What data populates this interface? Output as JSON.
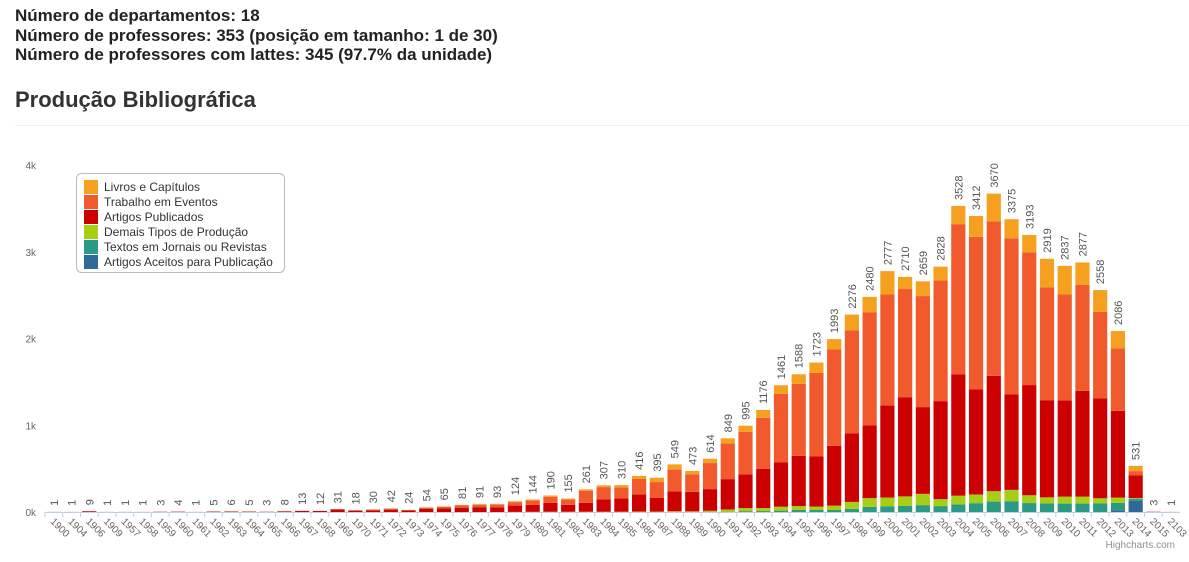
{
  "header": {
    "lines": [
      "Número de departamentos: 18",
      "Número de professores: 353 (posição em tamanho: 1 de 30)",
      "Número de professores com lattes: 345 (97.7% da unidade)"
    ]
  },
  "section_title": "Produção Bibliográfica",
  "chart_data": {
    "type": "stacked-bar",
    "credit": "Highcharts.com",
    "categories": [
      "1900",
      "1904",
      "1906",
      "1909",
      "1957",
      "1958",
      "1959",
      "1960",
      "1961",
      "1962",
      "1963",
      "1964",
      "1965",
      "1966",
      "1967",
      "1968",
      "1969",
      "1970",
      "1971",
      "1972",
      "1973",
      "1974",
      "1975",
      "1976",
      "1977",
      "1978",
      "1979",
      "1980",
      "1981",
      "1982",
      "1983",
      "1984",
      "1985",
      "1986",
      "1987",
      "1988",
      "1989",
      "1990",
      "1991",
      "1992",
      "1993",
      "1994",
      "1995",
      "1996",
      "1997",
      "1998",
      "1999",
      "2000",
      "2001",
      "2002",
      "2003",
      "2004",
      "2005",
      "2006",
      "2007",
      "2008",
      "2009",
      "2010",
      "2011",
      "2012",
      "2013",
      "2014",
      "2015",
      "2103"
    ],
    "totals": [
      1,
      1,
      9,
      1,
      1,
      1,
      3,
      4,
      1,
      5,
      6,
      5,
      3,
      8,
      13,
      12,
      31,
      18,
      30,
      42,
      24,
      54,
      65,
      81,
      91,
      93,
      124,
      144,
      190,
      155,
      261,
      307,
      310,
      416,
      395,
      549,
      473,
      614,
      849,
      995,
      1176,
      1461,
      1588,
      1723,
      1993,
      2276,
      2480,
      2777,
      2710,
      2659,
      2828,
      3528,
      3412,
      3670,
      3375,
      3193,
      2919,
      2837,
      2877,
      2558,
      2086,
      531,
      3,
      1
    ],
    "series": [
      {
        "name": "Livros e Capítulos",
        "color": "#f6a020",
        "values": [
          0,
          0,
          0,
          0,
          0,
          0,
          0,
          0,
          0,
          0,
          0,
          0,
          0,
          0,
          0,
          0,
          0,
          0,
          2,
          3,
          2,
          4,
          5,
          6,
          7,
          8,
          10,
          12,
          15,
          12,
          15,
          20,
          25,
          35,
          50,
          60,
          40,
          50,
          60,
          70,
          90,
          100,
          110,
          120,
          120,
          180,
          180,
          270,
          140,
          170,
          160,
          210,
          240,
          320,
          220,
          200,
          330,
          330,
          260,
          250,
          200,
          60,
          0,
          0
        ]
      },
      {
        "name": "Trabalho em Eventos",
        "color": "#f15a2c",
        "values": [
          0,
          0,
          0,
          0,
          0,
          0,
          0,
          0,
          0,
          0,
          0,
          0,
          0,
          0,
          0,
          0,
          0,
          0,
          8,
          12,
          4,
          15,
          20,
          25,
          28,
          30,
          40,
          50,
          70,
          60,
          140,
          140,
          130,
          180,
          180,
          250,
          200,
          300,
          410,
          490,
          590,
          790,
          830,
          960,
          1110,
          1190,
          1300,
          1280,
          1250,
          1280,
          1390,
          1730,
          1760,
          1780,
          1800,
          1530,
          1300,
          1220,
          1220,
          1000,
          720,
          50,
          0,
          0
        ]
      },
      {
        "name": "Artigos Publicados",
        "color": "#cc0000",
        "values": [
          1,
          1,
          9,
          1,
          1,
          1,
          3,
          4,
          1,
          5,
          6,
          5,
          3,
          8,
          13,
          12,
          31,
          18,
          20,
          27,
          18,
          35,
          40,
          50,
          56,
          55,
          73,
          80,
          102,
          80,
          103,
          144,
          152,
          195,
          160,
          230,
          225,
          250,
          350,
          390,
          450,
          510,
          580,
          580,
          690,
          790,
          840,
          1060,
          1140,
          1000,
          1130,
          1400,
          1210,
          1330,
          1100,
          1270,
          1120,
          1110,
          1220,
          1150,
          1000,
          260,
          3,
          1
        ]
      },
      {
        "name": "Demais Tipos de Produção",
        "color": "#a6cf14",
        "values": [
          0,
          0,
          0,
          0,
          0,
          0,
          0,
          0,
          0,
          0,
          0,
          0,
          0,
          0,
          0,
          0,
          0,
          0,
          0,
          0,
          0,
          0,
          0,
          0,
          0,
          0,
          1,
          2,
          3,
          3,
          3,
          3,
          3,
          6,
          5,
          9,
          8,
          14,
          25,
          35,
          35,
          45,
          45,
          40,
          50,
          80,
          100,
          100,
          110,
          130,
          80,
          100,
          100,
          120,
          130,
          90,
          70,
          80,
          80,
          60,
          60,
          10,
          0,
          0
        ]
      },
      {
        "name": "Textos em Jornais ou Revistas",
        "color": "#2a9a86",
        "values": [
          0,
          0,
          0,
          0,
          0,
          0,
          0,
          0,
          0,
          0,
          0,
          0,
          0,
          0,
          0,
          0,
          0,
          0,
          0,
          0,
          0,
          0,
          0,
          0,
          0,
          0,
          0,
          0,
          0,
          0,
          0,
          0,
          0,
          0,
          0,
          0,
          0,
          0,
          4,
          10,
          11,
          16,
          23,
          23,
          23,
          36,
          60,
          67,
          70,
          79,
          68,
          88,
          102,
          120,
          125,
          103,
          99,
          97,
          97,
          98,
          86,
          20,
          0,
          0
        ]
      },
      {
        "name": "Artigos Aceitos para Publicação",
        "color": "#2d6a98",
        "values": [
          0,
          0,
          0,
          0,
          0,
          0,
          0,
          0,
          0,
          0,
          0,
          0,
          0,
          0,
          0,
          0,
          0,
          0,
          0,
          0,
          0,
          0,
          0,
          0,
          0,
          0,
          0,
          0,
          0,
          0,
          0,
          0,
          0,
          0,
          0,
          0,
          0,
          0,
          0,
          0,
          0,
          0,
          0,
          0,
          0,
          0,
          0,
          0,
          0,
          0,
          0,
          0,
          0,
          0,
          0,
          0,
          0,
          0,
          0,
          0,
          20,
          131,
          0,
          0
        ]
      }
    ],
    "ylim": [
      0,
      4000
    ],
    "yticks": [
      {
        "value": 0,
        "label": "0k"
      },
      {
        "value": 1000,
        "label": "1k"
      },
      {
        "value": 2000,
        "label": "2k"
      },
      {
        "value": 3000,
        "label": "3k"
      },
      {
        "value": 4000,
        "label": "4k"
      }
    ],
    "grid": false,
    "legend": "top-left"
  }
}
